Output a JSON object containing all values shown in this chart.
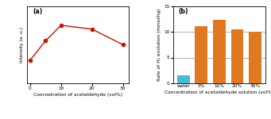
{
  "panel_a": {
    "x": [
      0,
      5,
      10,
      20,
      30
    ],
    "y": [
      9.0,
      11.5,
      13.5,
      13.0,
      11.0
    ],
    "line_color": "#cc1100",
    "marker": "o",
    "marker_facecolor": "#cc1100",
    "marker_size": 3,
    "xlabel": "Concnetration of acetaldehyde (vol%)",
    "ylabel": "Intensity (a. u.)",
    "label": "(a)",
    "xticks": [
      0,
      10,
      20,
      30
    ],
    "xlim": [
      -1,
      32
    ],
    "ylim": [
      6,
      16
    ]
  },
  "panel_b": {
    "categories": [
      "water",
      "5%",
      "10%",
      "20%",
      "30%"
    ],
    "values": [
      1.5,
      11.1,
      12.3,
      10.5,
      10.0
    ],
    "bar_colors": [
      "#4db8d4",
      "#e07820",
      "#e07820",
      "#e07820",
      "#e07820"
    ],
    "xlabel": "Concentration of acetaldehyde solution (vol%)",
    "ylabel": "Rate of H₂ evolution (mmol/hg)",
    "label": "(b)",
    "ylim": [
      0,
      15
    ],
    "yticks": [
      0,
      5,
      10,
      15
    ]
  },
  "fig_bgcolor": "#ffffff",
  "axes_bgcolor": "#ffffff"
}
